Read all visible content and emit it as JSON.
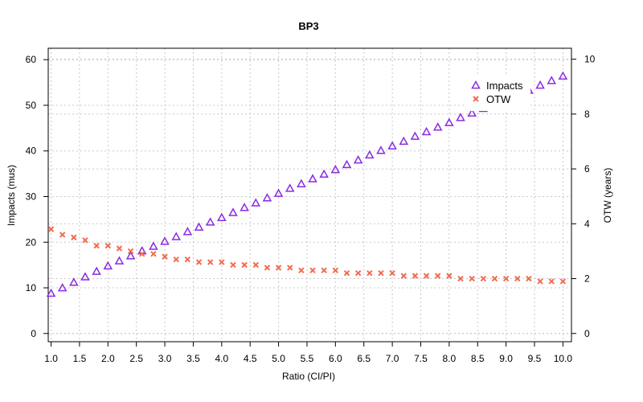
{
  "chart_data": {
    "type": "scatter",
    "title": "BP3",
    "xlabel": "Ratio (CI/PI)",
    "ylabel_left": "Impacts  (mus)",
    "ylabel_right": "OTW (years)",
    "xlim": [
      0.95,
      10.15
    ],
    "ylim_left": [
      -1.8,
      62.5
    ],
    "ylim_right": [
      -0.3,
      10.4
    ],
    "x_ticks": [
      "1.0",
      "1.5",
      "2.0",
      "2.5",
      "3.0",
      "3.5",
      "4.0",
      "4.5",
      "5.0",
      "5.5",
      "6.0",
      "6.5",
      "7.0",
      "7.5",
      "8.0",
      "8.5",
      "9.0",
      "9.5",
      "10.0"
    ],
    "y_left_ticks": [
      "0",
      "10",
      "20",
      "30",
      "40",
      "50",
      "60"
    ],
    "y_right_ticks": [
      "0",
      "2",
      "4",
      "6",
      "8",
      "10"
    ],
    "grid": true,
    "legend_position": "top-right",
    "x": [
      1.0,
      1.2,
      1.4,
      1.6,
      1.8,
      2.0,
      2.2,
      2.4,
      2.6,
      2.8,
      3.0,
      3.2,
      3.4,
      3.6,
      3.8,
      4.0,
      4.2,
      4.4,
      4.6,
      4.8,
      5.0,
      5.2,
      5.4,
      5.6,
      5.8,
      6.0,
      6.2,
      6.4,
      6.6,
      6.8,
      7.0,
      7.2,
      7.4,
      7.6,
      7.8,
      8.0,
      8.2,
      8.4,
      8.6,
      8.8,
      9.0,
      9.2,
      9.4,
      9.6,
      9.8,
      10.0
    ],
    "series": [
      {
        "name": "Impacts",
        "axis": "left",
        "marker": "triangle",
        "color": "#8a2be2",
        "values": [
          8.8,
          10.0,
          11.2,
          12.4,
          13.6,
          14.8,
          15.9,
          17.0,
          18.1,
          19.1,
          20.2,
          21.2,
          22.3,
          23.3,
          24.4,
          25.4,
          26.5,
          27.6,
          28.6,
          29.7,
          30.7,
          31.8,
          32.8,
          33.9,
          34.9,
          35.9,
          37.0,
          38.0,
          39.1,
          40.1,
          41.1,
          42.1,
          43.2,
          44.2,
          45.2,
          46.2,
          47.3,
          48.3,
          49.3,
          50.3,
          51.3,
          52.3,
          53.3,
          54.4,
          55.4,
          56.4
        ]
      },
      {
        "name": "OTW",
        "axis": "right",
        "marker": "x",
        "color": "#f26b50",
        "values": [
          3.8,
          3.6,
          3.5,
          3.4,
          3.2,
          3.2,
          3.1,
          3.0,
          2.9,
          2.9,
          2.8,
          2.7,
          2.7,
          2.6,
          2.6,
          2.6,
          2.5,
          2.5,
          2.5,
          2.4,
          2.4,
          2.4,
          2.3,
          2.3,
          2.3,
          2.3,
          2.2,
          2.2,
          2.2,
          2.2,
          2.2,
          2.1,
          2.1,
          2.1,
          2.1,
          2.1,
          2.0,
          2.0,
          2.0,
          2.0,
          2.0,
          2.0,
          2.0,
          1.9,
          1.9,
          1.9
        ]
      }
    ]
  }
}
